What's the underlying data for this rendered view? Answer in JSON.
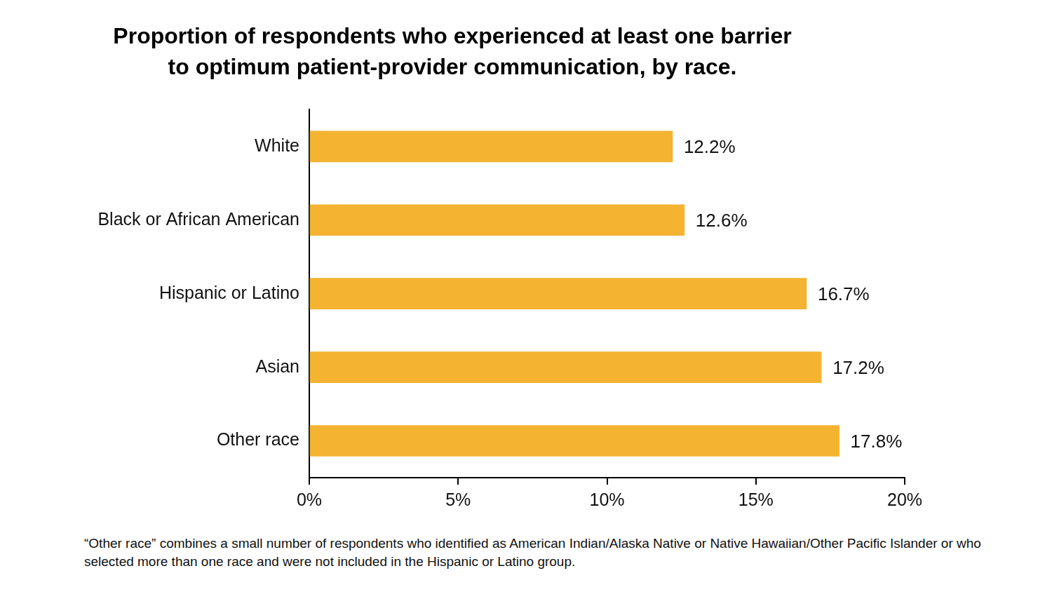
{
  "chart_data": {
    "type": "bar",
    "orientation": "horizontal",
    "title": [
      "Proportion of respondents who experienced at least one barrier",
      "to optimum patient-provider communication, by race."
    ],
    "categories": [
      "White",
      "Black or African American",
      "Hispanic or Latino",
      "Asian",
      "Other race"
    ],
    "values": [
      12.2,
      12.6,
      16.7,
      17.2,
      17.8
    ],
    "value_labels": [
      "12.2%",
      "12.6%",
      "16.7%",
      "17.2%",
      "17.8%"
    ],
    "data_labels": true,
    "color": "#f4b331",
    "xlim": [
      0,
      20
    ],
    "xticks": [
      {
        "value": 0,
        "label": "0%"
      },
      {
        "value": 5,
        "label": "5%"
      },
      {
        "value": 10,
        "label": "10%"
      },
      {
        "value": 15,
        "label": "15%"
      },
      {
        "value": 20,
        "label": "20%"
      }
    ],
    "grid": false,
    "legend": null,
    "footnote": "“Other race” combines a small number of respondents who identified as American Indian/Alaska Native or Native Hawaiian/Other Pacific Islander or who selected more than one race and were not included in the Hispanic or Latino group."
  }
}
